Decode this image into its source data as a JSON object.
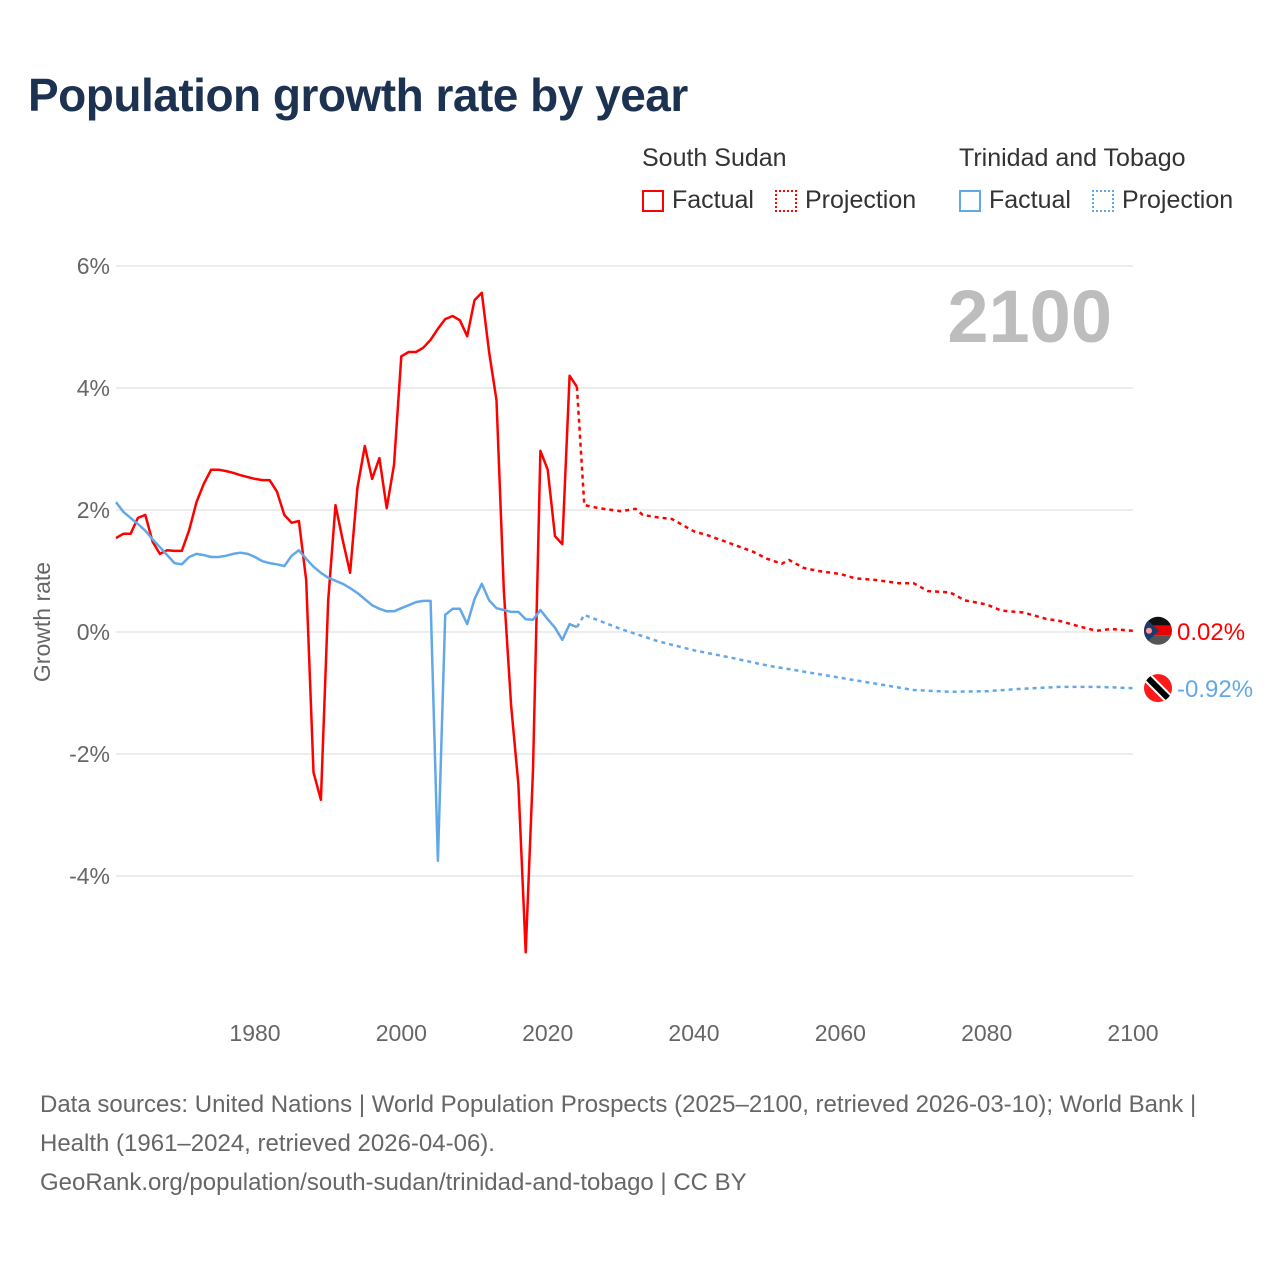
{
  "title": "Population growth rate by year",
  "legend": {
    "groups": [
      {
        "name": "South Sudan",
        "factual": "Factual",
        "projection": "Projection",
        "color": "#ff0000"
      },
      {
        "name": "Trinidad and Tobago",
        "factual": "Factual",
        "projection": "Projection",
        "color": "#62a8e8"
      }
    ]
  },
  "year_display": "2100",
  "footer": {
    "sources": "Data sources: United Nations | World Population Prospects (2025–2100, retrieved 2026-03-10); World Bank | Health (1961–2024, retrieved 2026-04-06).",
    "link": "GeoRank.org/population/south-sudan/trinidad-and-tobago | CC BY"
  },
  "chart_data": {
    "type": "line",
    "title": "Population growth rate by year",
    "xlabel": "",
    "ylabel": "Growth rate",
    "xlim": [
      1961,
      2100
    ],
    "ylim": [
      -5.5,
      6
    ],
    "yticks": [
      6,
      4,
      2,
      0,
      -2,
      -4
    ],
    "ytick_labels": [
      "6%",
      "4%",
      "2%",
      "0%",
      "-2%",
      "-4%"
    ],
    "xticks": [
      1980,
      2000,
      2020,
      2040,
      2060,
      2080,
      2100
    ],
    "xtick_labels": [
      "1980",
      "2000",
      "2020",
      "2040",
      "2060",
      "2080",
      "2100"
    ],
    "grid": true,
    "series": [
      {
        "name": "South Sudan",
        "color": "#ff0000",
        "end_label": "0.02%",
        "factual": {
          "x": [
            1961,
            1962,
            1963,
            1964,
            1965,
            1966,
            1967,
            1968,
            1969,
            1970,
            1971,
            1972,
            1973,
            1974,
            1975,
            1976,
            1977,
            1978,
            1979,
            1980,
            1981,
            1982,
            1983,
            1984,
            1985,
            1986,
            1987,
            1988,
            1989,
            1990,
            1991,
            1992,
            1993,
            1994,
            1995,
            1996,
            1997,
            1998,
            1999,
            2000,
            2001,
            2002,
            2003,
            2004,
            2005,
            2006,
            2007,
            2008,
            2009,
            2010,
            2011,
            2012,
            2013,
            2014,
            2015,
            2016,
            2017,
            2018,
            2019,
            2020,
            2021,
            2022,
            2023,
            2024
          ],
          "y": [
            1.54,
            1.61,
            1.61,
            1.87,
            1.92,
            1.48,
            1.28,
            1.34,
            1.33,
            1.33,
            1.67,
            2.13,
            2.43,
            2.66,
            2.66,
            2.64,
            2.61,
            2.57,
            2.54,
            2.51,
            2.49,
            2.49,
            2.3,
            1.92,
            1.79,
            1.82,
            0.85,
            -2.3,
            -2.75,
            0.52,
            2.08,
            1.5,
            0.97,
            2.36,
            3.05,
            2.51,
            2.85,
            2.03,
            2.74,
            4.52,
            4.59,
            4.59,
            4.66,
            4.79,
            4.97,
            5.13,
            5.18,
            5.11,
            4.85,
            5.44,
            5.56,
            4.59,
            3.8,
            0.69,
            -1.2,
            -2.5,
            -5.25,
            -2.26,
            2.97,
            2.66,
            1.57,
            1.44,
            4.2,
            4.02
          ]
        },
        "projection": {
          "x": [
            2024,
            2025,
            2027,
            2030,
            2032,
            2033,
            2035,
            2037,
            2040,
            2042,
            2045,
            2048,
            2050,
            2052,
            2053,
            2055,
            2057,
            2060,
            2062,
            2065,
            2068,
            2070,
            2072,
            2075,
            2077,
            2080,
            2082,
            2085,
            2088,
            2090,
            2093,
            2095,
            2097,
            2100
          ],
          "y": [
            4.02,
            2.08,
            2.03,
            1.98,
            2.02,
            1.92,
            1.88,
            1.85,
            1.65,
            1.58,
            1.45,
            1.32,
            1.2,
            1.12,
            1.18,
            1.05,
            1.0,
            0.95,
            0.88,
            0.85,
            0.8,
            0.8,
            0.67,
            0.65,
            0.52,
            0.45,
            0.35,
            0.32,
            0.22,
            0.18,
            0.08,
            0.02,
            0.05,
            0.02
          ]
        }
      },
      {
        "name": "Trinidad and Tobago",
        "color": "#62a8e8",
        "end_label": "-0.92%",
        "factual": {
          "x": [
            1961,
            1962,
            1963,
            1964,
            1965,
            1966,
            1967,
            1968,
            1969,
            1970,
            1971,
            1972,
            1973,
            1974,
            1975,
            1976,
            1977,
            1978,
            1979,
            1980,
            1981,
            1982,
            1983,
            1984,
            1985,
            1986,
            1987,
            1988,
            1989,
            1990,
            1991,
            1992,
            1993,
            1994,
            1995,
            1996,
            1997,
            1998,
            1999,
            2000,
            2001,
            2002,
            2003,
            2004,
            2005,
            2006,
            2007,
            2008,
            2009,
            2010,
            2011,
            2012,
            2013,
            2014,
            2015,
            2016,
            2017,
            2018,
            2019,
            2020,
            2021,
            2022,
            2023,
            2024
          ],
          "y": [
            2.13,
            1.97,
            1.87,
            1.77,
            1.66,
            1.52,
            1.39,
            1.26,
            1.13,
            1.11,
            1.23,
            1.28,
            1.26,
            1.23,
            1.23,
            1.25,
            1.28,
            1.3,
            1.28,
            1.23,
            1.16,
            1.13,
            1.11,
            1.08,
            1.25,
            1.34,
            1.2,
            1.07,
            0.97,
            0.89,
            0.84,
            0.79,
            0.72,
            0.64,
            0.54,
            0.44,
            0.38,
            0.34,
            0.34,
            0.39,
            0.44,
            0.49,
            0.51,
            0.51,
            -3.75,
            0.28,
            0.38,
            0.38,
            0.13,
            0.54,
            0.79,
            0.52,
            0.39,
            0.36,
            0.33,
            0.33,
            0.21,
            0.2,
            0.36,
            0.21,
            0.07,
            -0.13,
            0.13,
            0.08
          ]
        },
        "projection": {
          "x": [
            2024,
            2025,
            2030,
            2035,
            2040,
            2045,
            2050,
            2055,
            2060,
            2065,
            2070,
            2075,
            2080,
            2085,
            2090,
            2095,
            2100
          ],
          "y": [
            0.08,
            0.28,
            0.05,
            -0.15,
            -0.3,
            -0.42,
            -0.55,
            -0.65,
            -0.75,
            -0.85,
            -0.95,
            -0.98,
            -0.97,
            -0.93,
            -0.9,
            -0.9,
            -0.92
          ]
        }
      }
    ]
  }
}
